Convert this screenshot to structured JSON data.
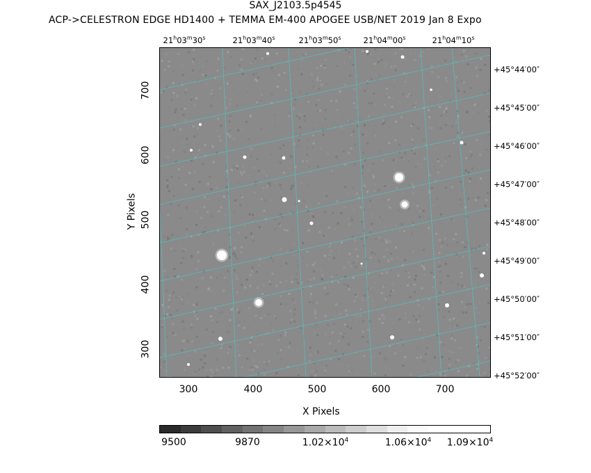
{
  "header": {
    "title": "SAX_J2103.5p4545",
    "subtitle": "ACP->CELESTRON EDGE HD1400 + TEMMA EM-400 APOGEE USB/NET   2019 Jan  8    Expo"
  },
  "ra_labels": [
    {
      "h": "21",
      "m": "03",
      "s": "30"
    },
    {
      "h": "21",
      "m": "03",
      "s": "40"
    },
    {
      "h": "21",
      "m": "03",
      "s": "50"
    },
    {
      "h": "21",
      "m": "04",
      "s": "00"
    },
    {
      "h": "21",
      "m": "04",
      "s": "10"
    }
  ],
  "dec_labels": [
    "+45°44′00″",
    "+45°45′00″",
    "+45°46′00″",
    "+45°47′00″",
    "+45°48′00″",
    "+45°49′00″",
    "+45°50′00″",
    "+45°51′00″",
    "+45°52′00″"
  ],
  "x_axis": {
    "label": "X Pixels",
    "ticks": [
      "300",
      "400",
      "500",
      "600",
      "700"
    ]
  },
  "y_axis": {
    "label": "Y Pixels",
    "ticks": [
      "700",
      "600",
      "500",
      "400",
      "300"
    ]
  },
  "colorbar": {
    "labels": [
      {
        "base": "9500"
      },
      {
        "base": "9870"
      },
      {
        "base": "1.02×10",
        "exp": "4"
      },
      {
        "base": "1.06×10",
        "exp": "4"
      },
      {
        "base": "1.09×10",
        "exp": "4"
      }
    ],
    "levels": [
      "#2a2a2a",
      "#3c3c3c",
      "#4e4e4e",
      "#616161",
      "#737373",
      "#858585",
      "#979797",
      "#a9a9a9",
      "#bbbbbb",
      "#cdcdcd",
      "#dedede",
      "#efefef",
      "#fafafa",
      "#ffffff",
      "#ffffff",
      "#ffffff"
    ]
  },
  "colors": {
    "grid": "#3fd3d3",
    "background": "#8a8a8a"
  }
}
